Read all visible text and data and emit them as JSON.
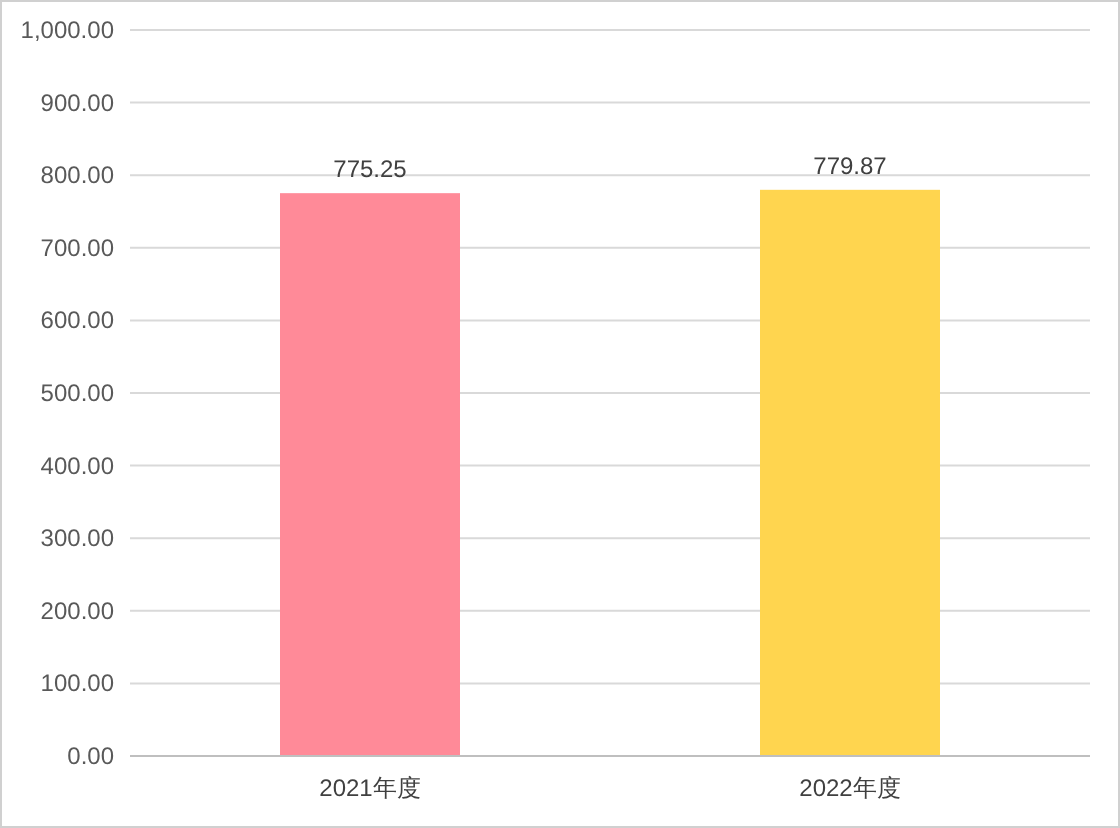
{
  "chart_data": {
    "type": "bar",
    "categories": [
      "2021年度",
      "2022年度"
    ],
    "values": [
      775.25,
      779.87
    ],
    "colors": [
      "#ff8a98",
      "#ffd54f"
    ],
    "ylim": [
      0,
      1000
    ],
    "yticks": [
      {
        "value": 0,
        "label": "0.00"
      },
      {
        "value": 100,
        "label": "100.00"
      },
      {
        "value": 200,
        "label": "200.00"
      },
      {
        "value": 300,
        "label": "300.00"
      },
      {
        "value": 400,
        "label": "400.00"
      },
      {
        "value": 500,
        "label": "500.00"
      },
      {
        "value": 600,
        "label": "600.00"
      },
      {
        "value": 700,
        "label": "700.00"
      },
      {
        "value": 800,
        "label": "800.00"
      },
      {
        "value": 900,
        "label": "900.00"
      },
      {
        "value": 1000,
        "label": "1,000.00"
      }
    ],
    "grid": "y",
    "data_labels": true
  }
}
